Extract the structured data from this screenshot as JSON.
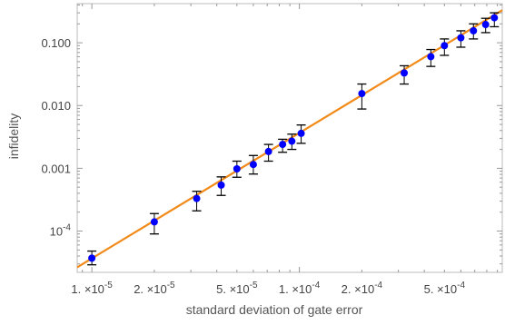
{
  "chart_data": {
    "type": "scatter",
    "title": "",
    "xlabel": "standard deviation of gate error",
    "ylabel": "infidelity",
    "x_scale": "log",
    "y_scale": "log",
    "xlim": [
      8.5e-06,
      0.00095
    ],
    "ylim": [
      2.2e-05,
      0.42
    ],
    "grid": false,
    "legend": "none",
    "x_ticks": [
      {
        "value": 1e-05,
        "mantissa": "1.",
        "exponent": "-5"
      },
      {
        "value": 2e-05,
        "mantissa": "2.",
        "exponent": "-5"
      },
      {
        "value": 5e-05,
        "mantissa": "5.",
        "exponent": "-5"
      },
      {
        "value": 0.0001,
        "mantissa": "1.",
        "exponent": "-4"
      },
      {
        "value": 0.0002,
        "mantissa": "2.",
        "exponent": "-4"
      },
      {
        "value": 0.0005,
        "mantissa": "5.",
        "exponent": "-4"
      }
    ],
    "x_tick_times": "×10",
    "y_ticks": [
      {
        "value": 0.0001,
        "label": "10",
        "exponent": "-4"
      },
      {
        "value": 0.001,
        "label": "0.001"
      },
      {
        "value": 0.01,
        "label": "0.010"
      },
      {
        "value": 0.1,
        "label": "0.100"
      }
    ],
    "series": [
      {
        "kind": "points",
        "color": "#0000ff",
        "errorbar_color": "#000000",
        "points": [
          {
            "x": 1e-05,
            "y": 3.7e-05,
            "lo": 2.9e-05,
            "hi": 4.8e-05
          },
          {
            "x": 2e-05,
            "y": 0.00014,
            "lo": 9e-05,
            "hi": 0.00019
          },
          {
            "x": 3.2e-05,
            "y": 0.00033,
            "lo": 0.00021,
            "hi": 0.00043
          },
          {
            "x": 4.2e-05,
            "y": 0.00054,
            "lo": 0.00037,
            "hi": 0.00073
          },
          {
            "x": 5e-05,
            "y": 0.00098,
            "lo": 0.00072,
            "hi": 0.0013
          },
          {
            "x": 6e-05,
            "y": 0.00115,
            "lo": 0.00081,
            "hi": 0.0016
          },
          {
            "x": 7.1e-05,
            "y": 0.00185,
            "lo": 0.0013,
            "hi": 0.0024
          },
          {
            "x": 8.3e-05,
            "y": 0.0024,
            "lo": 0.0018,
            "hi": 0.0029
          },
          {
            "x": 9.2e-05,
            "y": 0.0027,
            "lo": 0.002,
            "hi": 0.0035
          },
          {
            "x": 0.000102,
            "y": 0.0036,
            "lo": 0.0025,
            "hi": 0.0049
          },
          {
            "x": 0.0002,
            "y": 0.0155,
            "lo": 0.0088,
            "hi": 0.022
          },
          {
            "x": 0.00032,
            "y": 0.033,
            "lo": 0.022,
            "hi": 0.043
          },
          {
            "x": 0.00043,
            "y": 0.06,
            "lo": 0.042,
            "hi": 0.078
          },
          {
            "x": 0.0005,
            "y": 0.09,
            "lo": 0.063,
            "hi": 0.115
          },
          {
            "x": 0.0006,
            "y": 0.12,
            "lo": 0.085,
            "hi": 0.155
          },
          {
            "x": 0.00069,
            "y": 0.155,
            "lo": 0.115,
            "hi": 0.2
          },
          {
            "x": 0.00079,
            "y": 0.195,
            "lo": 0.145,
            "hi": 0.245
          },
          {
            "x": 0.00087,
            "y": 0.25,
            "lo": 0.18,
            "hi": 0.3
          }
        ]
      },
      {
        "kind": "fit-line",
        "color": "#f28a19",
        "x": [
          8.5e-06,
          0.00095
        ],
        "y": [
          2.65e-05,
          0.33
        ]
      }
    ]
  }
}
